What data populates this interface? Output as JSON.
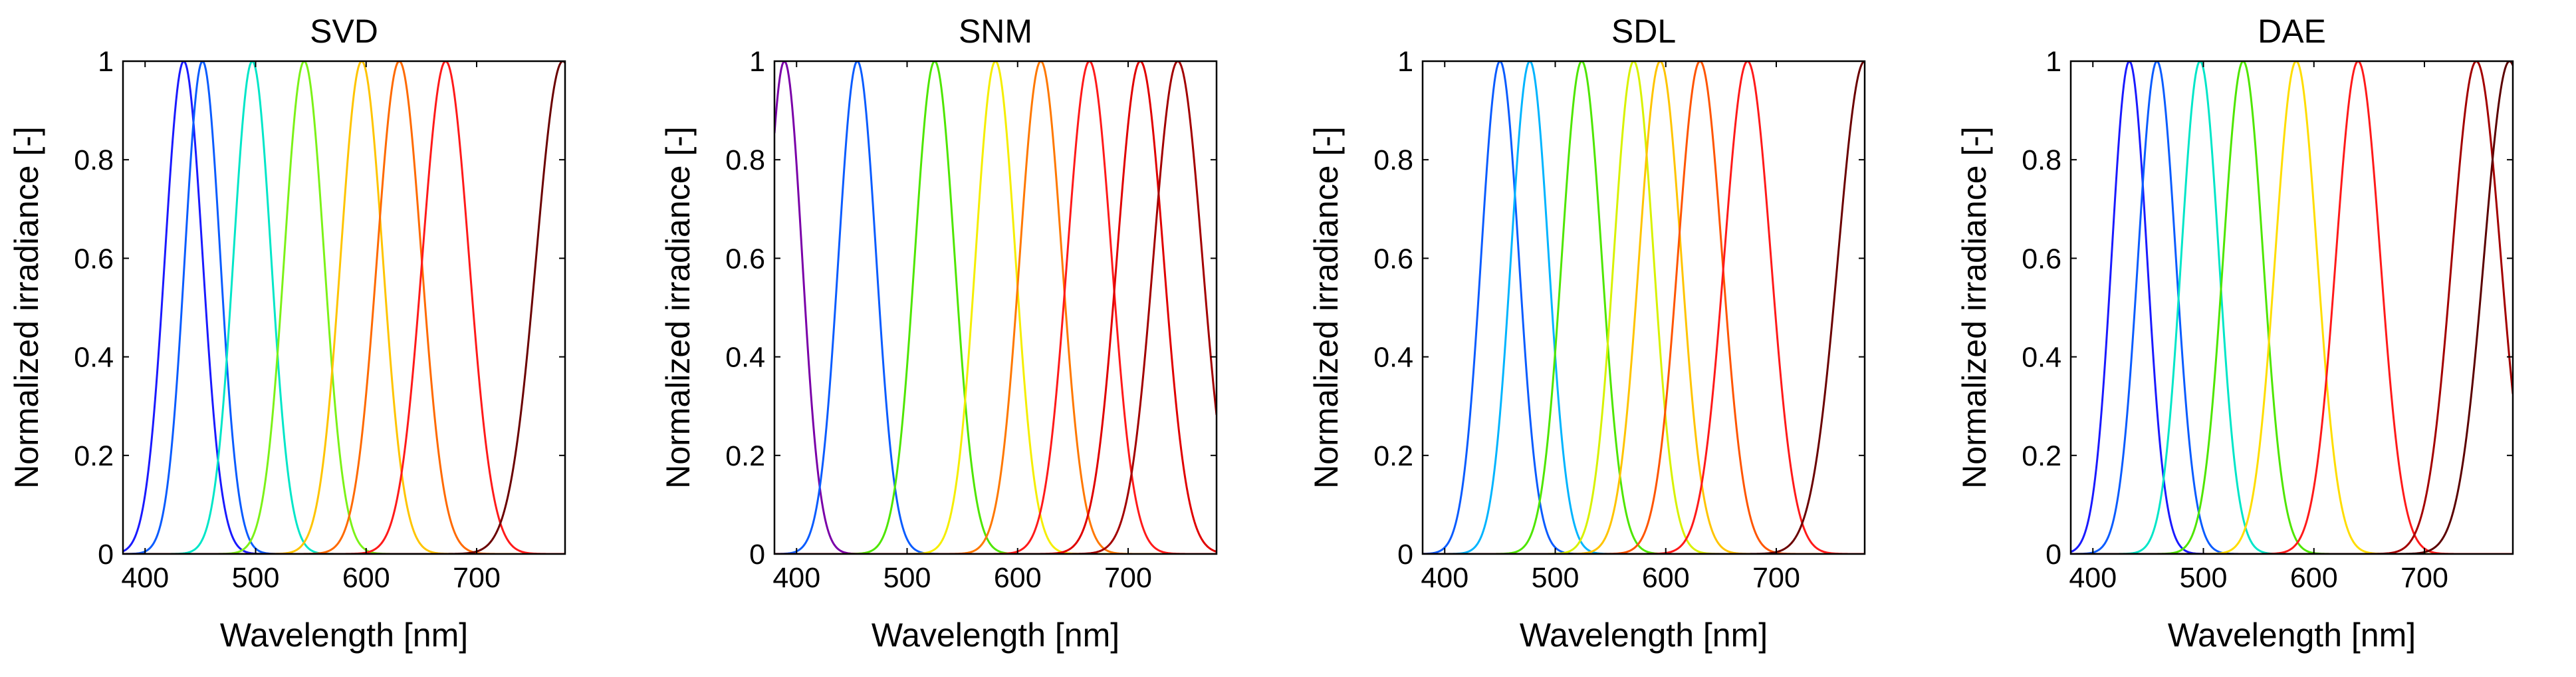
{
  "chart_data": [
    {
      "type": "line",
      "title": "SVD",
      "xlabel": "Wavelength [nm]",
      "ylabel": "Normalized irradiance [-]",
      "xlim": [
        380,
        780
      ],
      "ylim": [
        0,
        1
      ],
      "xticks": [
        "400",
        "500",
        "600",
        "700"
      ],
      "yticks": [
        "0",
        "0.2",
        "0.4",
        "0.6",
        "0.8",
        "1"
      ],
      "grid": false,
      "series": [
        {
          "peak": 435,
          "width": 17,
          "color": "#1a1aff"
        },
        {
          "peak": 452,
          "width": 16,
          "color": "#0a5cff"
        },
        {
          "peak": 497,
          "width": 17,
          "color": "#00e6c8"
        },
        {
          "peak": 544,
          "width": 18,
          "color": "#7cf218"
        },
        {
          "peak": 596,
          "width": 19,
          "color": "#ffc400"
        },
        {
          "peak": 630,
          "width": 20,
          "color": "#ff6a00"
        },
        {
          "peak": 672,
          "width": 21,
          "color": "#ff1a1a"
        },
        {
          "peak": 778,
          "width": 24,
          "color": "#6b0000"
        }
      ]
    },
    {
      "type": "line",
      "title": "SNM",
      "xlabel": "Wavelength [nm]",
      "ylabel": "Normalized irradiance [-]",
      "xlim": [
        380,
        780
      ],
      "ylim": [
        0,
        1
      ],
      "xticks": [
        "400",
        "500",
        "600",
        "700"
      ],
      "yticks": [
        "0",
        "0.2",
        "0.4",
        "0.6",
        "0.8",
        "1"
      ],
      "grid": false,
      "series": [
        {
          "peak": 389,
          "width": 16,
          "color": "#7a00a8"
        },
        {
          "peak": 455,
          "width": 17,
          "color": "#0a5cff"
        },
        {
          "peak": 525,
          "width": 18,
          "color": "#4ee600"
        },
        {
          "peak": 580,
          "width": 18,
          "color": "#f5ee00"
        },
        {
          "peak": 621,
          "width": 19,
          "color": "#ff7800"
        },
        {
          "peak": 665,
          "width": 20,
          "color": "#ff1a1a"
        },
        {
          "peak": 711,
          "width": 21,
          "color": "#e00000"
        },
        {
          "peak": 745,
          "width": 22,
          "color": "#a30000"
        }
      ]
    },
    {
      "type": "line",
      "title": "SDL",
      "xlabel": "Wavelength [nm]",
      "ylabel": "Normalized irradiance [-]",
      "xlim": [
        380,
        780
      ],
      "ylim": [
        0,
        1
      ],
      "xticks": [
        "400",
        "500",
        "600",
        "700"
      ],
      "yticks": [
        "0",
        "0.2",
        "0.4",
        "0.6",
        "0.8",
        "1"
      ],
      "grid": false,
      "series": [
        {
          "peak": 450,
          "width": 17,
          "color": "#0a5cff"
        },
        {
          "peak": 477,
          "width": 17,
          "color": "#00b4ff"
        },
        {
          "peak": 524,
          "width": 18,
          "color": "#4ee600"
        },
        {
          "peak": 571,
          "width": 18,
          "color": "#d8f200"
        },
        {
          "peak": 595,
          "width": 19,
          "color": "#ffc400"
        },
        {
          "peak": 631,
          "width": 20,
          "color": "#ff5500"
        },
        {
          "peak": 674,
          "width": 21,
          "color": "#ff1a1a"
        },
        {
          "peak": 780,
          "width": 24,
          "color": "#6b0000"
        }
      ]
    },
    {
      "type": "line",
      "title": "DAE",
      "xlabel": "Wavelength [nm]",
      "ylabel": "Normalized irradiance [-]",
      "xlim": [
        380,
        780
      ],
      "ylim": [
        0,
        1
      ],
      "xticks": [
        "400",
        "500",
        "600",
        "700"
      ],
      "yticks": [
        "0",
        "0.2",
        "0.4",
        "0.6",
        "0.8",
        "1"
      ],
      "grid": false,
      "series": [
        {
          "peak": 433,
          "width": 16,
          "color": "#1a1aff"
        },
        {
          "peak": 458,
          "width": 17,
          "color": "#0a5cff"
        },
        {
          "peak": 497,
          "width": 17,
          "color": "#00e6c8"
        },
        {
          "peak": 536,
          "width": 18,
          "color": "#4ee600"
        },
        {
          "peak": 584,
          "width": 19,
          "color": "#ffdd00"
        },
        {
          "peak": 640,
          "width": 20,
          "color": "#ff1a1a"
        },
        {
          "peak": 747,
          "width": 22,
          "color": "#a30000"
        },
        {
          "peak": 777,
          "width": 23,
          "color": "#5c0000"
        }
      ]
    }
  ]
}
